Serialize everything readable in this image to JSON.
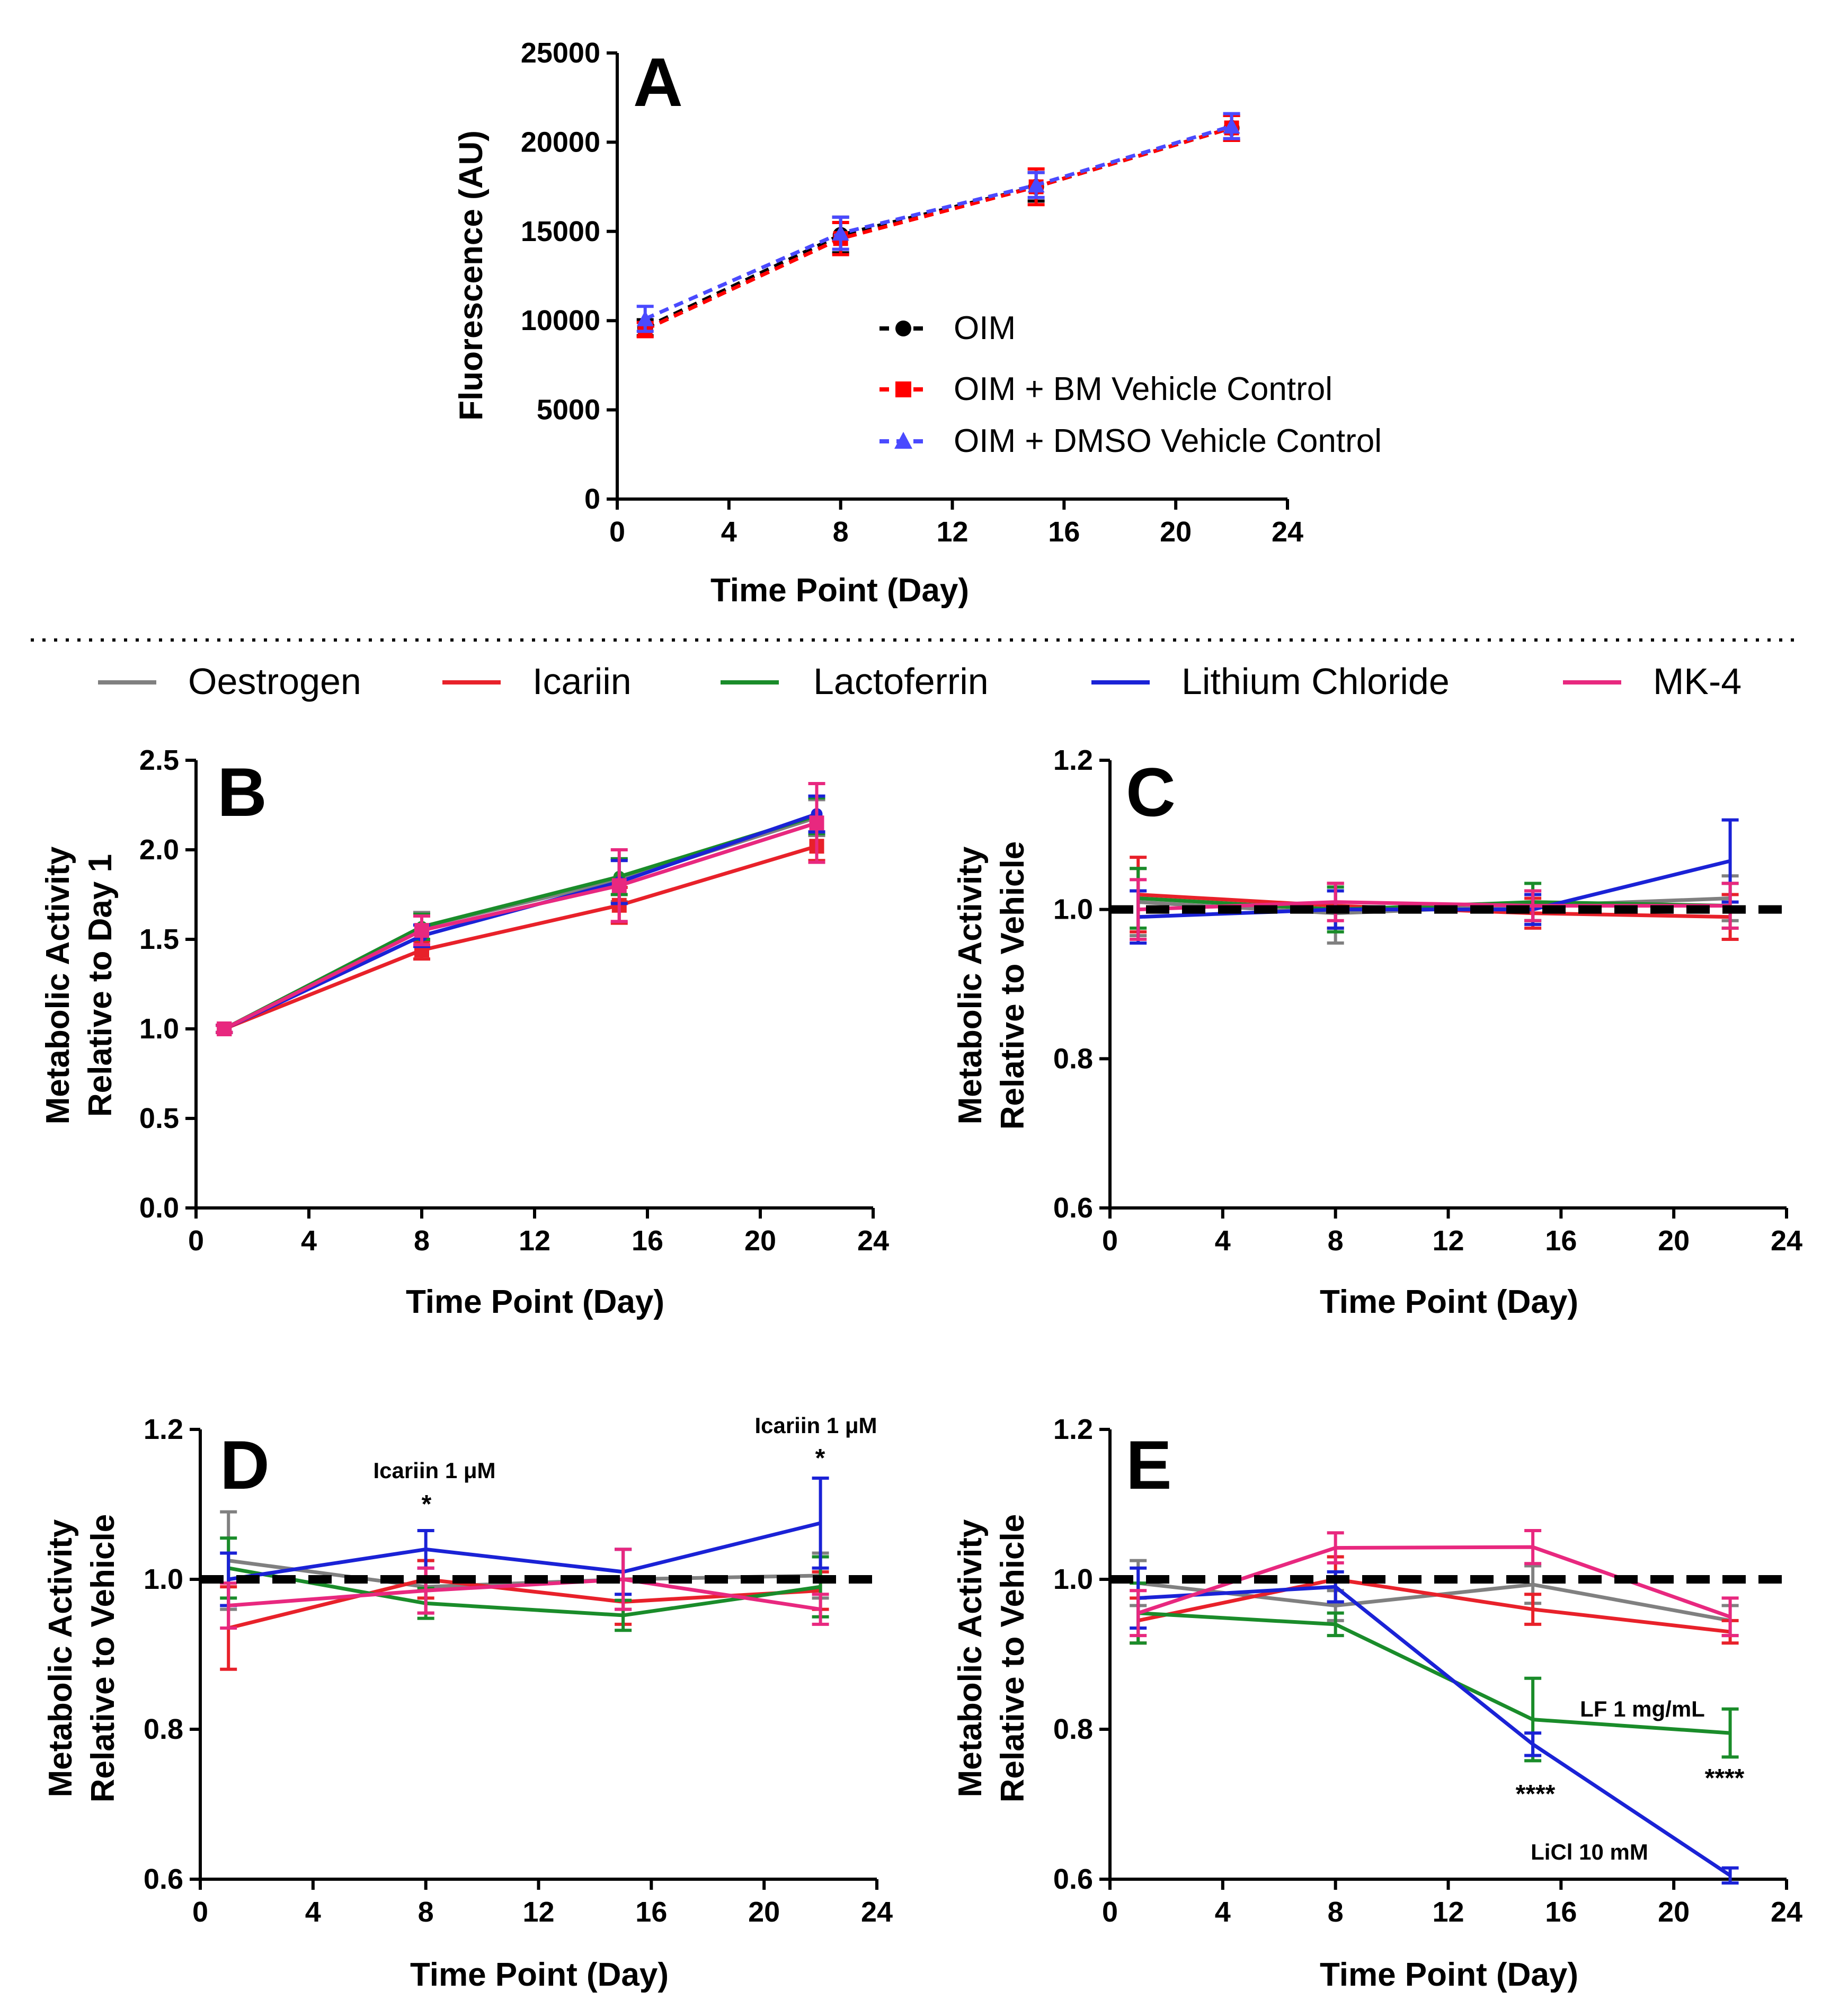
{
  "legend": {
    "items": [
      {
        "label": "Oestrogen",
        "color": "#808080"
      },
      {
        "label": "Icariin",
        "color": "#e8212a"
      },
      {
        "label": "Lactoferrin",
        "color": "#1a8c2a"
      },
      {
        "label": "Lithium Chloride",
        "color": "#1a22d6"
      },
      {
        "label": "MK-4",
        "color": "#e8287f"
      }
    ]
  },
  "chart_data": [
    {
      "id": "A",
      "type": "line",
      "panel_label": "A",
      "xlabel": "Time Point (Day)",
      "ylabel": "Fluorescence (AU)",
      "xlim": [
        0,
        24
      ],
      "ylim": [
        0,
        25000
      ],
      "xticks": [
        "0",
        "4",
        "8",
        "12",
        "16",
        "20",
        "24"
      ],
      "yticks": [
        "0",
        "5000",
        "10000",
        "15000",
        "20000",
        "25000"
      ],
      "x": [
        1,
        8,
        15,
        22
      ],
      "series": [
        {
          "name": "OIM",
          "color": "#000000",
          "marker": "circle",
          "values": [
            9600,
            14800,
            17500,
            20800
          ],
          "errors": [
            450,
            1000,
            800,
            700
          ]
        },
        {
          "name": "OIM + BM Vehicle Control",
          "color": "#ff0000",
          "marker": "square",
          "values": [
            9500,
            14600,
            17500,
            20800
          ],
          "errors": [
            400,
            900,
            1000,
            700
          ]
        },
        {
          "name": "OIM + DMSO Vehicle Control",
          "color": "#4a4aff",
          "marker": "triangle",
          "values": [
            10100,
            14900,
            17600,
            20900
          ],
          "errors": [
            700,
            900,
            700,
            700
          ]
        }
      ]
    },
    {
      "id": "B",
      "type": "line",
      "panel_label": "B",
      "xlabel": "Time Point (Day)",
      "ylabel": [
        "Metabolic Activity",
        "Relative to  Day 1"
      ],
      "xlim": [
        0,
        24
      ],
      "ylim": [
        0,
        2.5
      ],
      "xticks": [
        "0",
        "4",
        "8",
        "12",
        "16",
        "20",
        "24"
      ],
      "yticks": [
        "0.0",
        "0.5",
        "1.0",
        "1.5",
        "2.0",
        "2.5"
      ],
      "x": [
        1,
        8,
        15,
        22
      ],
      "series": [
        {
          "name": "Oestrogen",
          "color": "#808080",
          "values": [
            1.0,
            1.57,
            1.83,
            2.18
          ],
          "errors": [
            0.02,
            0.08,
            0.12,
            0.1
          ]
        },
        {
          "name": "Icariin",
          "color": "#e8212a",
          "values": [
            1.0,
            1.44,
            1.69,
            2.02
          ],
          "errors": [
            0.02,
            0.05,
            0.1,
            0.08
          ]
        },
        {
          "name": "Lactoferrin",
          "color": "#1a8c2a",
          "values": [
            1.0,
            1.57,
            1.85,
            2.19
          ],
          "errors": [
            0.02,
            0.07,
            0.1,
            0.1
          ]
        },
        {
          "name": "Lithium Chloride",
          "color": "#1a22d6",
          "values": [
            1.0,
            1.52,
            1.82,
            2.2
          ],
          "errors": [
            0.02,
            0.06,
            0.12,
            0.1
          ]
        },
        {
          "name": "MK-4",
          "color": "#e8287f",
          "values": [
            1.0,
            1.55,
            1.8,
            2.15
          ],
          "errors": [
            0.02,
            0.08,
            0.2,
            0.22
          ]
        }
      ]
    },
    {
      "id": "C",
      "type": "line",
      "panel_label": "C",
      "xlabel": "Time Point (Day)",
      "ylabel": [
        "Metabolic Activity",
        "Relative to Vehicle"
      ],
      "xlim": [
        0,
        24
      ],
      "ylim": [
        0.6,
        1.2
      ],
      "xticks": [
        "0",
        "4",
        "8",
        "12",
        "16",
        "20",
        "24"
      ],
      "yticks": [
        "0.6",
        "0.8",
        "1.0",
        "1.2"
      ],
      "reference_line": 1.0,
      "x": [
        1,
        8,
        15,
        22
      ],
      "series": [
        {
          "name": "Oestrogen",
          "color": "#808080",
          "values": [
            1.01,
            0.995,
            1.005,
            1.015
          ],
          "errors": [
            0.045,
            0.04,
            0.02,
            0.03
          ]
        },
        {
          "name": "Icariin",
          "color": "#e8212a",
          "values": [
            1.02,
            1.005,
            0.995,
            0.99
          ],
          "errors": [
            0.05,
            0.03,
            0.02,
            0.03
          ]
        },
        {
          "name": "Lactoferrin",
          "color": "#1a8c2a",
          "values": [
            1.015,
            1.0,
            1.01,
            1.005
          ],
          "errors": [
            0.04,
            0.03,
            0.025,
            0.03
          ]
        },
        {
          "name": "Lithium Chloride",
          "color": "#1a22d6",
          "values": [
            0.99,
            1.0,
            1.0,
            1.065
          ],
          "errors": [
            0.035,
            0.025,
            0.02,
            0.055
          ]
        },
        {
          "name": "MK-4",
          "color": "#e8287f",
          "values": [
            1.0,
            1.01,
            1.005,
            1.005
          ],
          "errors": [
            0.04,
            0.025,
            0.02,
            0.03
          ]
        }
      ]
    },
    {
      "id": "D",
      "type": "line",
      "panel_label": "D",
      "xlabel": "Time Point (Day)",
      "ylabel": [
        "Metabolic Activity",
        "Relative to Vehicle"
      ],
      "xlim": [
        0,
        24
      ],
      "ylim": [
        0.6,
        1.2
      ],
      "xticks": [
        "0",
        "4",
        "8",
        "12",
        "16",
        "20",
        "24"
      ],
      "yticks": [
        "0.6",
        "0.8",
        "1.0",
        "1.2"
      ],
      "reference_line": 1.0,
      "x": [
        1,
        8,
        15,
        22
      ],
      "series": [
        {
          "name": "Oestrogen",
          "color": "#808080",
          "values": [
            1.025,
            0.99,
            1.0,
            1.005
          ],
          "errors": [
            0.065,
            0.035,
            0.04,
            0.03
          ]
        },
        {
          "name": "Icariin",
          "color": "#e8212a",
          "values": [
            0.935,
            1.0,
            0.97,
            0.985
          ],
          "errors": [
            0.055,
            0.025,
            0.03,
            0.025
          ]
        },
        {
          "name": "Lactoferrin",
          "color": "#1a8c2a",
          "values": [
            1.015,
            0.968,
            0.952,
            0.99
          ],
          "errors": [
            0.04,
            0.02,
            0.02,
            0.04
          ]
        },
        {
          "name": "Lithium Chloride",
          "color": "#1a22d6",
          "values": [
            1.0,
            1.04,
            1.01,
            1.075
          ],
          "errors": [
            0.035,
            0.025,
            0.03,
            0.06
          ]
        },
        {
          "name": "MK-4",
          "color": "#e8287f",
          "values": [
            0.965,
            0.985,
            1.0,
            0.96
          ],
          "errors": [
            0.03,
            0.03,
            0.04,
            0.02
          ]
        }
      ],
      "annotations": [
        {
          "x": 8,
          "label": "Icariin 1 μM",
          "stars": "*"
        },
        {
          "x": 22,
          "label": "Icariin 1 μM",
          "stars": "*"
        }
      ]
    },
    {
      "id": "E",
      "type": "line",
      "panel_label": "E",
      "xlabel": "Time Point (Day)",
      "ylabel": [
        "Metabolic Activity",
        "Relative to Vehicle"
      ],
      "xlim": [
        0,
        24
      ],
      "ylim": [
        0.6,
        1.2
      ],
      "xticks": [
        "0",
        "4",
        "8",
        "12",
        "16",
        "20",
        "24"
      ],
      "yticks": [
        "0.6",
        "0.8",
        "1.0",
        "1.2"
      ],
      "reference_line": 1.0,
      "x": [
        1,
        8,
        15,
        22
      ],
      "series": [
        {
          "name": "Oestrogen",
          "color": "#808080",
          "values": [
            0.995,
            0.965,
            0.993,
            0.945
          ],
          "errors": [
            0.03,
            0.02,
            0.025,
            0.02
          ]
        },
        {
          "name": "Icariin",
          "color": "#e8212a",
          "values": [
            0.945,
            1.0,
            0.96,
            0.93
          ],
          "errors": [
            0.03,
            0.03,
            0.02,
            0.015
          ]
        },
        {
          "name": "Lactoferrin",
          "color": "#1a8c2a",
          "values": [
            0.955,
            0.94,
            0.813,
            0.795
          ],
          "errors": [
            0.04,
            0.015,
            0.055,
            0.032
          ]
        },
        {
          "name": "Lithium Chloride",
          "color": "#1a22d6",
          "values": [
            0.975,
            0.99,
            0.78,
            0.605
          ],
          "errors": [
            0.04,
            0.02,
            0.015,
            0.01
          ]
        },
        {
          "name": "MK-4",
          "color": "#e8287f",
          "values": [
            0.955,
            1.042,
            1.043,
            0.95
          ],
          "errors": [
            0.03,
            0.02,
            0.022,
            0.025
          ]
        }
      ],
      "annotations": [
        {
          "label": "LF 1 mg/mL"
        },
        {
          "x": 15,
          "stars": "****"
        },
        {
          "x": 22,
          "stars": "****"
        },
        {
          "label": "LiCl 10 mM"
        }
      ]
    }
  ]
}
